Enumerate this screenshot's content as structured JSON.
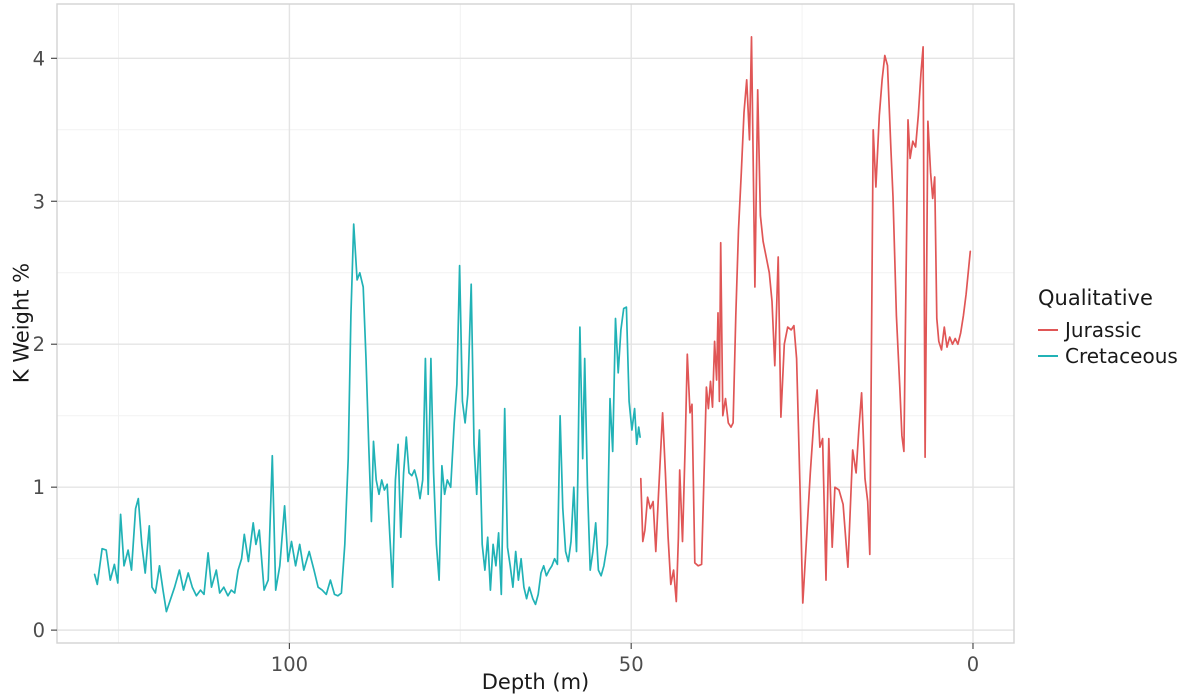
{
  "chart_data": {
    "type": "line",
    "title": "",
    "xlabel": "Depth (m)",
    "ylabel": "K Weight %",
    "x_ticks": [
      100,
      50,
      0
    ],
    "x_minor_ticks": [
      125,
      75,
      25
    ],
    "y_ticks": [
      0,
      1,
      2,
      3,
      4
    ],
    "y_minor_ticks": [
      0.5,
      1.5,
      2.5,
      3.5
    ],
    "xlim": [
      134,
      -6
    ],
    "x_reversed": true,
    "ylim": [
      -0.09,
      4.38
    ],
    "grid": "major+minor",
    "background": "#ffffff",
    "panel_border_color": "#d3d3d3",
    "grid_major_color": "#e4e4e4",
    "grid_minor_color": "#f2f2f2",
    "tick_color": "#4d4d4d",
    "tick_label_color": "#4d4d4d",
    "legend": {
      "title": "Qualitative",
      "position": "right"
    },
    "series": [
      {
        "name": "Jurassic",
        "color": "#e05656",
        "points": [
          [
            48.6,
            1.06
          ],
          [
            48.3,
            0.62
          ],
          [
            48.0,
            0.7
          ],
          [
            47.6,
            0.93
          ],
          [
            47.2,
            0.85
          ],
          [
            46.8,
            0.9
          ],
          [
            46.4,
            0.55
          ],
          [
            46.0,
            0.95
          ],
          [
            45.4,
            1.52
          ],
          [
            45.0,
            1.1
          ],
          [
            44.6,
            0.65
          ],
          [
            44.2,
            0.32
          ],
          [
            43.8,
            0.42
          ],
          [
            43.4,
            0.2
          ],
          [
            43.1,
            0.65
          ],
          [
            42.9,
            1.12
          ],
          [
            42.5,
            0.62
          ],
          [
            42.1,
            1.3
          ],
          [
            41.8,
            1.93
          ],
          [
            41.4,
            1.52
          ],
          [
            41.1,
            1.58
          ],
          [
            40.7,
            0.47
          ],
          [
            40.2,
            0.45
          ],
          [
            39.7,
            0.46
          ],
          [
            39.0,
            1.7
          ],
          [
            38.7,
            1.55
          ],
          [
            38.4,
            1.74
          ],
          [
            38.1,
            1.56
          ],
          [
            37.8,
            2.02
          ],
          [
            37.5,
            1.75
          ],
          [
            37.3,
            2.22
          ],
          [
            37.1,
            1.6
          ],
          [
            36.9,
            2.71
          ],
          [
            36.6,
            1.5
          ],
          [
            36.2,
            1.62
          ],
          [
            35.8,
            1.45
          ],
          [
            35.4,
            1.42
          ],
          [
            35.1,
            1.45
          ],
          [
            34.7,
            2.2
          ],
          [
            34.3,
            2.8
          ],
          [
            33.9,
            3.2
          ],
          [
            33.5,
            3.62
          ],
          [
            33.1,
            3.85
          ],
          [
            32.7,
            3.43
          ],
          [
            32.4,
            4.15
          ],
          [
            31.9,
            2.4
          ],
          [
            31.5,
            3.78
          ],
          [
            31.1,
            2.9
          ],
          [
            30.7,
            2.72
          ],
          [
            30.2,
            2.6
          ],
          [
            29.8,
            2.5
          ],
          [
            29.4,
            2.3
          ],
          [
            29.0,
            1.85
          ],
          [
            28.5,
            2.61
          ],
          [
            28.1,
            1.49
          ],
          [
            27.6,
            2.0
          ],
          [
            27.1,
            2.12
          ],
          [
            26.6,
            2.1
          ],
          [
            26.2,
            2.13
          ],
          [
            25.8,
            1.9
          ],
          [
            25.3,
            1.0
          ],
          [
            24.9,
            0.19
          ],
          [
            24.4,
            0.6
          ],
          [
            23.8,
            1.1
          ],
          [
            23.3,
            1.45
          ],
          [
            22.8,
            1.68
          ],
          [
            22.4,
            1.28
          ],
          [
            22.0,
            1.34
          ],
          [
            21.5,
            0.35
          ],
          [
            21.1,
            1.34
          ],
          [
            20.6,
            0.58
          ],
          [
            20.2,
            1.0
          ],
          [
            19.6,
            0.98
          ],
          [
            19.0,
            0.88
          ],
          [
            18.3,
            0.44
          ],
          [
            17.6,
            1.26
          ],
          [
            17.1,
            1.1
          ],
          [
            16.7,
            1.4
          ],
          [
            16.3,
            1.66
          ],
          [
            15.8,
            1.06
          ],
          [
            15.4,
            0.9
          ],
          [
            15.1,
            0.53
          ],
          [
            14.6,
            3.5
          ],
          [
            14.2,
            3.1
          ],
          [
            13.7,
            3.6
          ],
          [
            13.3,
            3.85
          ],
          [
            12.9,
            4.02
          ],
          [
            12.5,
            3.95
          ],
          [
            12.0,
            3.35
          ],
          [
            11.7,
            3.03
          ],
          [
            11.2,
            2.2
          ],
          [
            10.7,
            1.7
          ],
          [
            10.4,
            1.36
          ],
          [
            10.1,
            1.25
          ],
          [
            9.5,
            3.57
          ],
          [
            9.2,
            3.3
          ],
          [
            8.8,
            3.42
          ],
          [
            8.4,
            3.38
          ],
          [
            8.0,
            3.6
          ],
          [
            7.6,
            3.9
          ],
          [
            7.3,
            4.08
          ],
          [
            7.0,
            1.21
          ],
          [
            6.6,
            3.56
          ],
          [
            6.2,
            3.2
          ],
          [
            5.9,
            3.02
          ],
          [
            5.6,
            3.17
          ],
          [
            5.3,
            2.18
          ],
          [
            5.0,
            2.02
          ],
          [
            4.6,
            1.96
          ],
          [
            4.2,
            2.12
          ],
          [
            3.8,
            1.98
          ],
          [
            3.4,
            2.05
          ],
          [
            3.0,
            2.0
          ],
          [
            2.6,
            2.04
          ],
          [
            2.2,
            2.0
          ],
          [
            1.8,
            2.08
          ],
          [
            1.4,
            2.2
          ],
          [
            1.0,
            2.35
          ],
          [
            0.6,
            2.55
          ],
          [
            0.4,
            2.65
          ]
        ]
      },
      {
        "name": "Cretaceous",
        "color": "#21b2b6",
        "points": [
          [
            128.5,
            0.39
          ],
          [
            128.1,
            0.32
          ],
          [
            127.4,
            0.57
          ],
          [
            126.8,
            0.56
          ],
          [
            126.2,
            0.35
          ],
          [
            125.6,
            0.46
          ],
          [
            125.1,
            0.33
          ],
          [
            124.7,
            0.81
          ],
          [
            124.2,
            0.45
          ],
          [
            123.6,
            0.56
          ],
          [
            123.1,
            0.42
          ],
          [
            122.5,
            0.85
          ],
          [
            122.1,
            0.92
          ],
          [
            121.6,
            0.6
          ],
          [
            121.1,
            0.4
          ],
          [
            120.5,
            0.73
          ],
          [
            120.1,
            0.3
          ],
          [
            119.6,
            0.26
          ],
          [
            119.0,
            0.45
          ],
          [
            118.5,
            0.28
          ],
          [
            118.0,
            0.13
          ],
          [
            117.5,
            0.2
          ],
          [
            116.8,
            0.3
          ],
          [
            116.1,
            0.42
          ],
          [
            115.5,
            0.28
          ],
          [
            114.8,
            0.4
          ],
          [
            114.2,
            0.3
          ],
          [
            113.6,
            0.24
          ],
          [
            113.0,
            0.28
          ],
          [
            112.5,
            0.25
          ],
          [
            111.9,
            0.54
          ],
          [
            111.4,
            0.3
          ],
          [
            110.7,
            0.42
          ],
          [
            110.2,
            0.26
          ],
          [
            109.6,
            0.3
          ],
          [
            109.0,
            0.24
          ],
          [
            108.5,
            0.28
          ],
          [
            108.0,
            0.26
          ],
          [
            107.5,
            0.42
          ],
          [
            107.0,
            0.5
          ],
          [
            106.6,
            0.67
          ],
          [
            106.0,
            0.48
          ],
          [
            105.3,
            0.75
          ],
          [
            104.9,
            0.6
          ],
          [
            104.4,
            0.7
          ],
          [
            103.7,
            0.28
          ],
          [
            103.1,
            0.35
          ],
          [
            102.5,
            1.22
          ],
          [
            102.0,
            0.28
          ],
          [
            101.4,
            0.45
          ],
          [
            100.7,
            0.87
          ],
          [
            100.2,
            0.48
          ],
          [
            99.7,
            0.62
          ],
          [
            99.1,
            0.45
          ],
          [
            98.5,
            0.6
          ],
          [
            97.9,
            0.42
          ],
          [
            97.1,
            0.55
          ],
          [
            96.4,
            0.42
          ],
          [
            95.8,
            0.3
          ],
          [
            95.2,
            0.28
          ],
          [
            94.6,
            0.25
          ],
          [
            94.0,
            0.35
          ],
          [
            93.4,
            0.25
          ],
          [
            92.9,
            0.24
          ],
          [
            92.4,
            0.26
          ],
          [
            91.9,
            0.6
          ],
          [
            91.4,
            1.2
          ],
          [
            91.0,
            2.2
          ],
          [
            90.6,
            2.84
          ],
          [
            90.1,
            2.45
          ],
          [
            89.7,
            2.5
          ],
          [
            89.2,
            2.4
          ],
          [
            88.8,
            1.9
          ],
          [
            88.4,
            1.3
          ],
          [
            88.0,
            0.76
          ],
          [
            87.7,
            1.32
          ],
          [
            87.3,
            1.05
          ],
          [
            86.9,
            0.95
          ],
          [
            86.5,
            1.05
          ],
          [
            86.1,
            0.98
          ],
          [
            85.7,
            1.02
          ],
          [
            85.3,
            0.65
          ],
          [
            84.9,
            0.3
          ],
          [
            84.5,
            1.05
          ],
          [
            84.1,
            1.3
          ],
          [
            83.7,
            0.65
          ],
          [
            83.3,
            1.1
          ],
          [
            82.9,
            1.35
          ],
          [
            82.5,
            1.1
          ],
          [
            82.1,
            1.08
          ],
          [
            81.7,
            1.12
          ],
          [
            81.3,
            1.05
          ],
          [
            80.9,
            0.92
          ],
          [
            80.5,
            1.05
          ],
          [
            80.1,
            1.9
          ],
          [
            79.7,
            0.95
          ],
          [
            79.3,
            1.9
          ],
          [
            78.9,
            1.1
          ],
          [
            78.5,
            0.6
          ],
          [
            78.1,
            0.35
          ],
          [
            77.7,
            1.15
          ],
          [
            77.3,
            0.95
          ],
          [
            76.9,
            1.05
          ],
          [
            76.4,
            1.0
          ],
          [
            75.9,
            1.45
          ],
          [
            75.5,
            1.72
          ],
          [
            75.1,
            2.55
          ],
          [
            74.7,
            1.6
          ],
          [
            74.3,
            1.45
          ],
          [
            73.9,
            1.65
          ],
          [
            73.4,
            2.42
          ],
          [
            73.0,
            1.3
          ],
          [
            72.6,
            0.95
          ],
          [
            72.2,
            1.4
          ],
          [
            71.8,
            0.6
          ],
          [
            71.4,
            0.42
          ],
          [
            71.0,
            0.65
          ],
          [
            70.6,
            0.28
          ],
          [
            70.2,
            0.6
          ],
          [
            69.8,
            0.45
          ],
          [
            69.4,
            0.68
          ],
          [
            69.0,
            0.25
          ],
          [
            68.5,
            1.55
          ],
          [
            68.1,
            0.58
          ],
          [
            67.7,
            0.45
          ],
          [
            67.3,
            0.3
          ],
          [
            66.9,
            0.55
          ],
          [
            66.5,
            0.35
          ],
          [
            66.1,
            0.5
          ],
          [
            65.7,
            0.3
          ],
          [
            65.3,
            0.22
          ],
          [
            64.9,
            0.3
          ],
          [
            64.4,
            0.22
          ],
          [
            64.0,
            0.18
          ],
          [
            63.6,
            0.25
          ],
          [
            63.2,
            0.4
          ],
          [
            62.8,
            0.45
          ],
          [
            62.4,
            0.38
          ],
          [
            62.0,
            0.42
          ],
          [
            61.6,
            0.45
          ],
          [
            61.2,
            0.5
          ],
          [
            60.8,
            0.46
          ],
          [
            60.4,
            1.5
          ],
          [
            60.0,
            0.85
          ],
          [
            59.6,
            0.55
          ],
          [
            59.2,
            0.48
          ],
          [
            58.8,
            0.62
          ],
          [
            58.4,
            1.0
          ],
          [
            58.0,
            0.55
          ],
          [
            57.8,
            1.1
          ],
          [
            57.5,
            2.12
          ],
          [
            57.1,
            1.2
          ],
          [
            56.8,
            1.9
          ],
          [
            56.4,
            1.0
          ],
          [
            56.0,
            0.42
          ],
          [
            55.6,
            0.55
          ],
          [
            55.2,
            0.75
          ],
          [
            54.8,
            0.42
          ],
          [
            54.4,
            0.38
          ],
          [
            54.0,
            0.45
          ],
          [
            53.5,
            0.6
          ],
          [
            53.1,
            1.62
          ],
          [
            52.7,
            1.25
          ],
          [
            52.3,
            2.18
          ],
          [
            51.9,
            1.8
          ],
          [
            51.5,
            2.1
          ],
          [
            51.1,
            2.25
          ],
          [
            50.7,
            2.26
          ],
          [
            50.3,
            1.6
          ],
          [
            49.9,
            1.4
          ],
          [
            49.5,
            1.55
          ],
          [
            49.2,
            1.3
          ],
          [
            48.9,
            1.42
          ],
          [
            48.7,
            1.35
          ]
        ]
      }
    ]
  }
}
